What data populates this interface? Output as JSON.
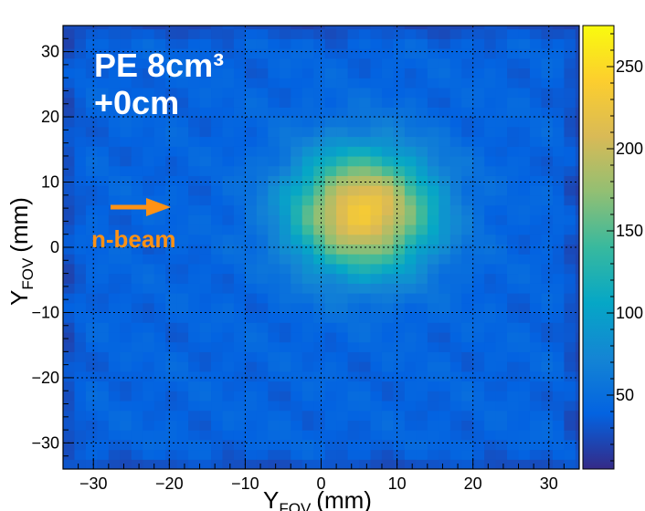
{
  "chart_data": {
    "type": "heatmap",
    "title": "",
    "annotations": {
      "sample": "PE 8cm³",
      "offset": "+0cm",
      "beam_label": "n-beam"
    },
    "xlabel": {
      "main": "Y",
      "sub": "FOV",
      "unit": "(mm)"
    },
    "ylabel": {
      "main": "Y",
      "sub": "FOV",
      "unit": "(mm)"
    },
    "xlim": [
      -34,
      34
    ],
    "ylim": [
      -34,
      34
    ],
    "zlim": [
      5,
      275
    ],
    "x_ticks": [
      -30,
      -20,
      -10,
      0,
      10,
      20,
      30
    ],
    "y_ticks": [
      -30,
      -20,
      -10,
      0,
      10,
      20,
      30
    ],
    "z_ticks": [
      50,
      100,
      150,
      200,
      250
    ],
    "x_tick_labels": [
      "−30",
      "−20",
      "−10",
      "0",
      "10",
      "20",
      "30"
    ],
    "y_tick_labels": [
      "−30",
      "−20",
      "−10",
      "0",
      "10",
      "20",
      "30"
    ],
    "z_tick_labels": [
      "50",
      "100",
      "150",
      "200",
      "250"
    ],
    "grid": true,
    "colormap": "parula",
    "background_level": 40,
    "hotspot": {
      "x_center": 5.5,
      "y_center": 5.5,
      "sigma": 6.5,
      "peak": 235
    },
    "colors": {
      "beam_arrow": "#ff9214",
      "annotation_text": "#ffffff"
    }
  }
}
